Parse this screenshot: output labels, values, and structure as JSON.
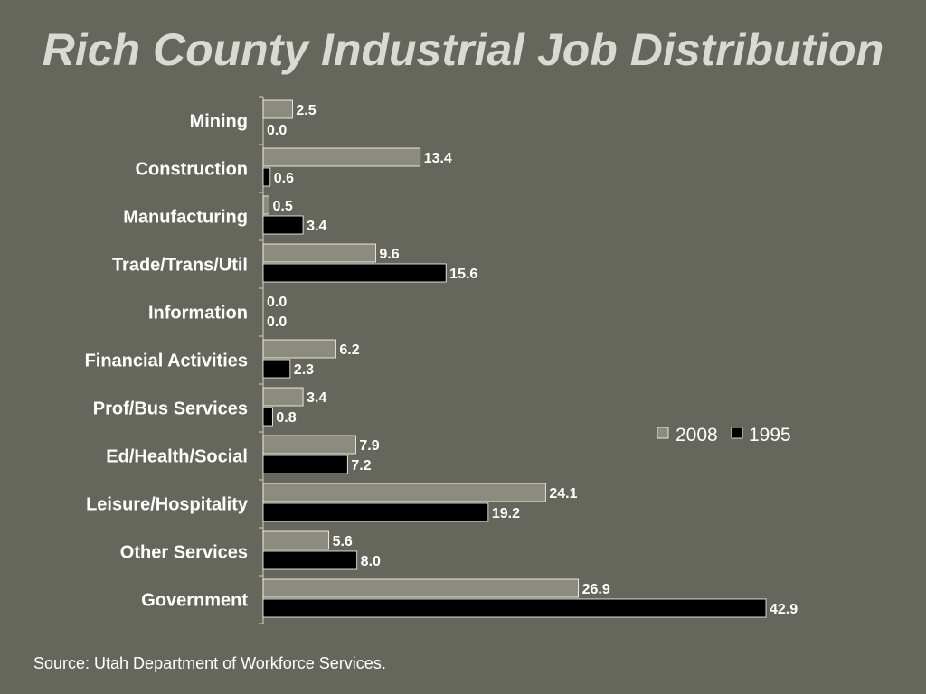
{
  "title": "Rich County Industrial Job Distribution",
  "source": "Source: Utah Department of Workforce Services.",
  "colors": {
    "background": "#66675c",
    "series_2008": "#8b8c7d",
    "series_1995": "#000000",
    "bar_border": "#ffffff",
    "title": "#d9dad3"
  },
  "chart_data": {
    "type": "bar",
    "orientation": "horizontal",
    "title": "Rich County Industrial Job Distribution",
    "categories": [
      "Mining",
      "Construction",
      "Manufacturing",
      "Trade/Trans/Util",
      "Information",
      "Financial Activities",
      "Prof/Bus Services",
      "Ed/Health/Social",
      "Leisure/Hospitality",
      "Other Services",
      "Government"
    ],
    "series": [
      {
        "name": "2008",
        "values": [
          2.5,
          13.4,
          0.5,
          9.6,
          0.0,
          6.2,
          3.4,
          7.9,
          24.1,
          5.6,
          26.9
        ],
        "labels": [
          "2.5",
          "13.4",
          "0.5",
          "9.6",
          "0.0",
          "6.2",
          "3.4",
          "7.9",
          "24.1",
          "5.6",
          "26.9"
        ]
      },
      {
        "name": "1995",
        "values": [
          0.0,
          0.6,
          3.4,
          15.6,
          0.0,
          2.3,
          0.8,
          7.2,
          19.2,
          8.0,
          42.9
        ],
        "labels": [
          "0.0",
          "0.6",
          "3.4",
          "15.6",
          "0.0",
          "2.3",
          "0.8",
          "7.2",
          "19.2",
          "8.0",
          "42.9"
        ]
      }
    ],
    "xlim": [
      0,
      45
    ],
    "grid": false,
    "legend": "right"
  }
}
